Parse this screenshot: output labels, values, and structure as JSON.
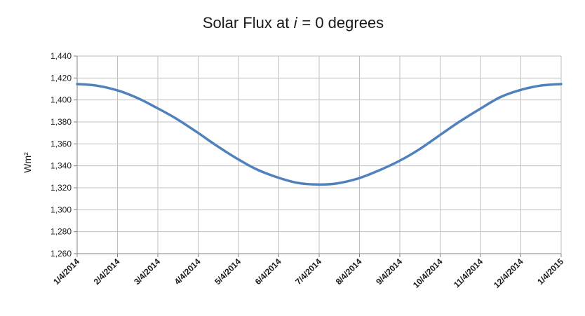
{
  "chart_data": {
    "type": "line",
    "title": "Solar Flux at 𝑖 = 0 degrees",
    "xlabel": "",
    "ylabel": "Wm²",
    "ylim": [
      1260,
      1440
    ],
    "y_ticks": [
      "1,260",
      "1,280",
      "1,300",
      "1,320",
      "1,340",
      "1,360",
      "1,380",
      "1,400",
      "1,420",
      "1,440"
    ],
    "x_ticks": [
      "1/4/2014",
      "2/4/2014",
      "3/4/2014",
      "4/4/2014",
      "5/4/2014",
      "6/4/2014",
      "7/4/2014",
      "8/4/2014",
      "9/4/2014",
      "10/4/2014",
      "11/4/2014",
      "12/4/2014",
      "1/4/2015"
    ],
    "grid": true,
    "legend": "none",
    "series": [
      {
        "color": "#4f81bd",
        "x": [
          "1/4/2014",
          "1/19/2014",
          "2/4/2014",
          "2/19/2014",
          "3/4/2014",
          "3/19/2014",
          "4/4/2014",
          "4/19/2014",
          "5/4/2014",
          "5/19/2014",
          "6/4/2014",
          "6/19/2014",
          "7/4/2014",
          "7/19/2014",
          "8/4/2014",
          "8/19/2014",
          "9/4/2014",
          "9/19/2014",
          "10/4/2014",
          "10/19/2014",
          "11/4/2014",
          "11/19/2014",
          "12/4/2014",
          "12/19/2014",
          "1/4/2015"
        ],
        "values": [
          1414.5,
          1413.0,
          1408.5,
          1401.5,
          1393.5,
          1383.5,
          1371.0,
          1358.5,
          1347.0,
          1337.0,
          1329.5,
          1324.5,
          1323.0,
          1324.0,
          1328.5,
          1335.5,
          1344.5,
          1355.0,
          1367.5,
          1380.0,
          1392.0,
          1402.5,
          1409.0,
          1413.0,
          1414.5
        ]
      }
    ]
  }
}
